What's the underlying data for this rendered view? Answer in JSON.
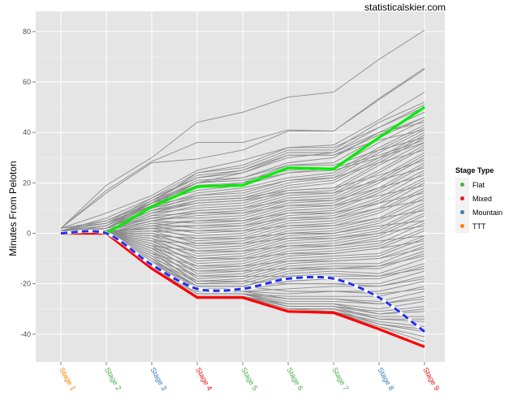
{
  "watermark": "statisticalskier.com",
  "legend": {
    "title": "Stage Type",
    "items": [
      {
        "label": "Flat",
        "color": "#4DAF4A"
      },
      {
        "label": "Mixed",
        "color": "#E41A1C"
      },
      {
        "label": "Mountain",
        "color": "#377EB8"
      },
      {
        "label": "TTT",
        "color": "#FF7F00"
      }
    ]
  },
  "chart_data": {
    "type": "line",
    "title": "",
    "xlabel": "",
    "ylabel": "Minutes From Peloton",
    "categories": [
      "Stage 1",
      "Stage 2",
      "Stage 3",
      "Stage 4",
      "Stage 5",
      "Stage 6",
      "Stage 7",
      "Stage 8",
      "Stage 9"
    ],
    "category_types": [
      "TTT",
      "Flat",
      "Mountain",
      "Mixed",
      "Flat",
      "Flat",
      "Flat",
      "Mountain",
      "Mixed"
    ],
    "y_ticks": [
      -40,
      -20,
      0,
      20,
      40,
      60,
      80
    ],
    "ylim": [
      -51,
      88
    ],
    "grid": true,
    "legend_position": "right",
    "highlight_series": [
      {
        "color": "#00EE00",
        "style": "solid",
        "values": [
          0,
          0,
          10.5,
          18.5,
          19,
          26,
          25.5,
          38,
          50
        ]
      },
      {
        "color": "#FF0000",
        "style": "solid",
        "values": [
          0,
          0,
          -14,
          -25.5,
          -25.5,
          -31,
          -31.5,
          -38,
          -45
        ]
      },
      {
        "color": "#1F30E8",
        "style": "dashed",
        "values": [
          0,
          0,
          -12.5,
          -22,
          -22,
          -18,
          -18,
          -25.5,
          -39
        ]
      }
    ],
    "series": [
      {
        "values": [
          2,
          19,
          30,
          44,
          48,
          54,
          56,
          69,
          80.5
        ]
      },
      {
        "values": [
          2,
          17,
          28.5,
          36,
          36,
          41,
          40.5,
          53.5,
          65.5
        ]
      },
      {
        "values": [
          2,
          16,
          28,
          29.5,
          33,
          40.5,
          40.5,
          53,
          65
        ]
      },
      {
        "values": [
          2,
          8,
          15,
          25,
          29,
          34,
          35,
          45,
          56
        ]
      },
      {
        "values": [
          1,
          6,
          14,
          24,
          26,
          33,
          33,
          44,
          52
        ]
      },
      {
        "values": [
          1,
          5,
          13,
          22,
          24,
          30,
          32,
          42,
          51
        ]
      },
      {
        "values": [
          1,
          4,
          12,
          20,
          22,
          28,
          30,
          40,
          48
        ]
      },
      {
        "values": [
          1,
          3,
          11,
          18,
          20,
          27,
          28,
          38,
          46
        ]
      },
      {
        "values": [
          0,
          3,
          12,
          17,
          19,
          24,
          26,
          36,
          45
        ]
      },
      {
        "values": [
          1,
          2,
          10,
          16,
          18,
          22,
          24,
          34,
          43
        ]
      },
      {
        "values": [
          0,
          2,
          9,
          15,
          16,
          21,
          23,
          33,
          42
        ]
      },
      {
        "values": [
          1,
          2,
          10,
          14,
          15,
          20,
          22,
          32,
          41
        ]
      },
      {
        "values": [
          0,
          1,
          8,
          13,
          14,
          19,
          21,
          30,
          40
        ]
      },
      {
        "values": [
          0,
          2,
          9,
          12,
          13,
          18,
          20,
          29,
          39
        ]
      },
      {
        "values": [
          1,
          1,
          7,
          11,
          12,
          17,
          18,
          28,
          38
        ]
      },
      {
        "values": [
          0,
          1,
          8,
          10,
          11,
          16,
          17,
          27,
          36
        ]
      },
      {
        "values": [
          0,
          2,
          6,
          9,
          10,
          15,
          16,
          25,
          35
        ]
      },
      {
        "values": [
          1,
          1,
          7,
          8,
          9,
          14,
          15,
          24,
          34
        ]
      },
      {
        "values": [
          0,
          0,
          5,
          7,
          8,
          13,
          14,
          22,
          32
        ]
      },
      {
        "values": [
          0,
          1,
          6,
          6,
          7,
          12,
          13,
          21,
          31
        ]
      },
      {
        "values": [
          1,
          0,
          4,
          5,
          6,
          11,
          12,
          20,
          30
        ]
      },
      {
        "values": [
          0,
          1,
          5,
          4,
          5,
          10,
          11,
          18,
          28
        ]
      },
      {
        "values": [
          0,
          0,
          3,
          3,
          4,
          9,
          10,
          17,
          27
        ]
      },
      {
        "values": [
          1,
          0,
          4,
          2,
          3,
          8,
          9,
          16,
          25
        ]
      },
      {
        "values": [
          0,
          1,
          2,
          1,
          2,
          7,
          8,
          14,
          24
        ]
      },
      {
        "values": [
          0,
          0,
          3,
          0,
          1,
          6,
          7,
          13,
          22
        ]
      },
      {
        "values": [
          0,
          0,
          1,
          -1,
          0,
          5,
          6,
          12,
          21
        ]
      },
      {
        "values": [
          0,
          1,
          2,
          -2,
          -1,
          4,
          5,
          10,
          20
        ]
      },
      {
        "values": [
          0,
          0,
          0,
          -3,
          -2,
          3,
          4,
          9,
          18
        ]
      },
      {
        "values": [
          1,
          0,
          1,
          -4,
          -3,
          2,
          3,
          8,
          17
        ]
      },
      {
        "values": [
          0,
          0,
          -1,
          -5,
          -4,
          1,
          2,
          6,
          15
        ]
      },
      {
        "values": [
          0,
          0,
          0,
          -6,
          -5,
          0,
          1,
          5,
          14
        ]
      },
      {
        "values": [
          0,
          0,
          -2,
          -7,
          -6,
          -1,
          0,
          4,
          12
        ]
      },
      {
        "values": [
          0,
          0,
          -1,
          -8,
          -7,
          -2,
          -1,
          2,
          11
        ]
      },
      {
        "values": [
          0,
          0,
          -3,
          -9,
          -8,
          -3,
          -2,
          1,
          10
        ]
      },
      {
        "values": [
          0,
          0,
          -2,
          -10,
          -9,
          -4,
          -3,
          0,
          8
        ]
      },
      {
        "values": [
          0,
          0,
          -4,
          -11,
          -10,
          -5,
          -4,
          -1,
          7
        ]
      },
      {
        "values": [
          0,
          0,
          -3,
          -12,
          -11,
          -6,
          -5,
          -2,
          5
        ]
      },
      {
        "values": [
          0,
          0,
          -5,
          -13,
          -12,
          -7,
          -6,
          -4,
          4
        ]
      },
      {
        "values": [
          0,
          0,
          -4,
          -14,
          -13,
          -8,
          -7,
          -5,
          2
        ]
      },
      {
        "values": [
          0,
          0,
          -6,
          -15,
          -14,
          -9,
          -8,
          -6,
          1
        ]
      },
      {
        "values": [
          0,
          0,
          -5,
          -16,
          -15,
          -10,
          -9,
          -8,
          -1
        ]
      },
      {
        "values": [
          0,
          0,
          -7,
          -17,
          -16,
          -11,
          -10,
          -9,
          -2
        ]
      },
      {
        "values": [
          0,
          0,
          -6,
          -18,
          -17,
          -12,
          -11,
          -10,
          -4
        ]
      },
      {
        "values": [
          0,
          0,
          -8,
          -19,
          -18,
          -13,
          -12,
          -12,
          -5
        ]
      },
      {
        "values": [
          0,
          0,
          -7,
          -20,
          -19,
          -14,
          -13,
          -13,
          -7
        ]
      },
      {
        "values": [
          0,
          0,
          -9,
          -20,
          -20,
          -15,
          -14,
          -14,
          -8
        ]
      },
      {
        "values": [
          0,
          0,
          -10,
          -21,
          -21,
          -16,
          -15,
          -16,
          -10
        ]
      },
      {
        "values": [
          0,
          0,
          -11,
          -21,
          -21,
          -17,
          -16,
          -17,
          -12
        ]
      },
      {
        "values": [
          0,
          0,
          -10,
          -22,
          -22,
          -19,
          -18,
          -18,
          -13
        ]
      },
      {
        "values": [
          0,
          0,
          -12,
          -22,
          -22,
          -20,
          -20,
          -20,
          -15
        ]
      },
      {
        "values": [
          0,
          0,
          -11,
          -23,
          -23,
          -22,
          -21,
          -21,
          -17
        ]
      },
      {
        "values": [
          0,
          0,
          -12,
          -23,
          -23,
          -24,
          -23,
          -23,
          -19
        ]
      },
      {
        "values": [
          0,
          0,
          -13,
          -24,
          -24,
          -25,
          -25,
          -25,
          -21
        ]
      },
      {
        "values": [
          0,
          0,
          -12,
          -24,
          -24,
          -26,
          -26,
          -27,
          -23
        ]
      },
      {
        "values": [
          0,
          0,
          -13,
          -24,
          -24,
          -27,
          -27,
          -28,
          -25
        ]
      },
      {
        "values": [
          0,
          0,
          -13,
          -25,
          -25,
          -28,
          -28,
          -30,
          -27
        ]
      },
      {
        "values": [
          0,
          0,
          -14,
          -25,
          -25,
          -29,
          -29,
          -31,
          -29
        ]
      },
      {
        "values": [
          0,
          0,
          -13,
          -25,
          -25,
          -29,
          -29,
          -32,
          -31
        ]
      },
      {
        "values": [
          0,
          0,
          -14,
          -25,
          -25,
          -30,
          -30,
          -33,
          -33
        ]
      },
      {
        "values": [
          0,
          0,
          -14,
          -25,
          -25,
          -30,
          -30,
          -34,
          -35
        ]
      },
      {
        "values": [
          0,
          0,
          -14,
          -25,
          -25,
          -30,
          -31,
          -35,
          -37
        ]
      },
      {
        "values": [
          0,
          0,
          -14,
          -25,
          -25,
          -31,
          -31,
          -36,
          -39
        ]
      },
      {
        "values": [
          0,
          0,
          -14,
          -25,
          -25,
          -31,
          -31,
          -37,
          -41
        ]
      },
      {
        "values": [
          0,
          0,
          -14,
          -25,
          -25,
          -31,
          -31,
          -37,
          -43
        ]
      },
      {
        "values": [
          1,
          3,
          13,
          20,
          21,
          25,
          26,
          31,
          37
        ]
      },
      {
        "values": [
          1,
          2,
          12,
          19,
          20,
          24,
          25,
          30,
          36
        ]
      },
      {
        "values": [
          0,
          2,
          11,
          15,
          17,
          21,
          22,
          28,
          33
        ]
      },
      {
        "values": [
          0,
          1,
          9,
          13,
          14,
          17,
          18,
          23,
          29
        ]
      },
      {
        "values": [
          0,
          1,
          8,
          12,
          13,
          16,
          16,
          21,
          26
        ]
      },
      {
        "values": [
          0,
          1,
          6,
          9,
          10,
          13,
          13,
          18,
          23
        ]
      },
      {
        "values": [
          0,
          0,
          5,
          8,
          8,
          11,
          11,
          15,
          19
        ]
      },
      {
        "values": [
          0,
          0,
          3,
          5,
          5,
          8,
          8,
          12,
          16
        ]
      },
      {
        "values": [
          0,
          0,
          2,
          3,
          3,
          6,
          6,
          10,
          13
        ]
      },
      {
        "values": [
          0,
          0,
          1,
          1,
          1,
          3,
          3,
          6,
          9
        ]
      },
      {
        "values": [
          0,
          0,
          -1,
          -2,
          -2,
          0,
          0,
          3,
          5
        ]
      },
      {
        "values": [
          0,
          0,
          -3,
          -4,
          -4,
          -2,
          -2,
          0,
          3
        ]
      },
      {
        "values": [
          0,
          0,
          -5,
          -7,
          -7,
          -5,
          -5,
          -3,
          -1
        ]
      },
      {
        "values": [
          0,
          0,
          -6,
          -10,
          -10,
          -8,
          -8,
          -6,
          -3
        ]
      },
      {
        "values": [
          0,
          0,
          -8,
          -13,
          -13,
          -11,
          -11,
          -10,
          -6
        ]
      },
      {
        "values": [
          0,
          0,
          -9,
          -15,
          -15,
          -14,
          -14,
          -13,
          -9
        ]
      },
      {
        "values": [
          0,
          0,
          -10,
          -17,
          -17,
          -17,
          -17,
          -17,
          -14
        ]
      },
      {
        "values": [
          0,
          0,
          -11,
          -19,
          -19,
          -20,
          -20,
          -21,
          -18
        ]
      },
      {
        "values": [
          0,
          0,
          -12,
          -21,
          -21,
          -23,
          -23,
          -24,
          -22
        ]
      },
      {
        "values": [
          0,
          0,
          -13,
          -23,
          -23,
          -26,
          -26,
          -28,
          -26
        ]
      },
      {
        "values": [
          0,
          0,
          -13,
          -24,
          -24,
          -28,
          -28,
          -32,
          -30
        ]
      },
      {
        "values": [
          0,
          0,
          -13,
          -24,
          -24,
          -29,
          -29,
          -34,
          -34
        ]
      },
      {
        "values": [
          0,
          0,
          -14,
          -25,
          -25,
          -30,
          -30,
          -36,
          -38
        ]
      },
      {
        "values": [
          2,
          5,
          12,
          24,
          27,
          34,
          34,
          42,
          50
        ]
      },
      {
        "values": [
          1,
          4,
          11,
          20,
          24,
          31,
          31,
          39,
          46
        ]
      },
      {
        "values": [
          2,
          4,
          14,
          22,
          25,
          32,
          32,
          40,
          44
        ]
      },
      {
        "values": [
          1,
          3,
          13,
          23,
          25,
          31,
          31,
          37,
          41
        ]
      },
      {
        "values": [
          0,
          2,
          12,
          21,
          22,
          27,
          27,
          33,
          38
        ]
      }
    ]
  }
}
